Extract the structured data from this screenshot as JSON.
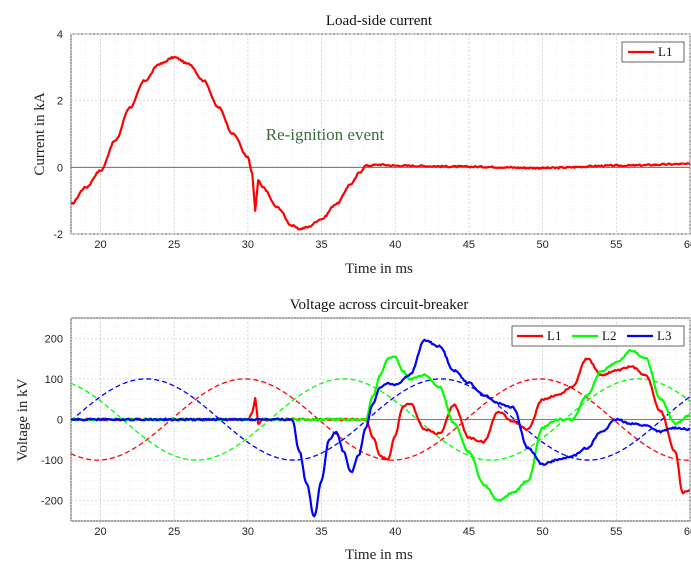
{
  "chart_data": [
    {
      "type": "line",
      "title": "Load-side current",
      "xlabel": "Time in ms",
      "ylabel": "Current in kA",
      "xlim": [
        18,
        60
      ],
      "ylim": [
        -2,
        4
      ],
      "xticks": [
        20,
        25,
        30,
        35,
        40,
        45,
        50,
        55,
        60
      ],
      "yticks": [
        -2,
        0,
        2,
        4
      ],
      "grid": true,
      "legend_position": "top-right",
      "annotation": {
        "text": "Re-ignition event",
        "x": 34,
        "y": 1.05,
        "color": "#3e6b3e"
      },
      "series": [
        {
          "name": "L1",
          "color": "#ff0000",
          "style": "solid",
          "x": [
            18,
            19,
            20,
            21,
            22,
            23,
            24,
            25,
            26,
            27,
            28,
            29,
            30,
            30.3,
            30.5,
            30.7,
            31,
            32,
            33,
            33.5,
            34,
            35,
            36,
            37,
            37.6,
            38,
            39,
            40,
            45,
            50,
            55,
            60
          ],
          "y": [
            -1.1,
            -0.6,
            -0.1,
            0.8,
            1.8,
            2.6,
            3.1,
            3.3,
            3.1,
            2.6,
            1.8,
            1.0,
            0.3,
            -0.2,
            -1.3,
            -0.4,
            -0.6,
            -1.2,
            -1.75,
            -1.85,
            -1.8,
            -1.55,
            -1.1,
            -0.5,
            -0.15,
            0.05,
            0.08,
            0.05,
            0.02,
            -0.02,
            0.05,
            0.1
          ]
        }
      ]
    },
    {
      "type": "line",
      "title": "Voltage across circuit-breaker",
      "xlabel": "Time in ms",
      "ylabel": "Voltage in kV",
      "xlim": [
        18,
        60
      ],
      "ylim": [
        -250,
        250
      ],
      "xticks": [
        20,
        25,
        30,
        35,
        40,
        45,
        50,
        55,
        60
      ],
      "yticks": [
        -200,
        -100,
        0,
        100,
        200
      ],
      "grid": true,
      "legend_position": "top-right",
      "series": [
        {
          "name": "L1",
          "color": "#ff0000",
          "style": "solid",
          "x": [
            18,
            30,
            30.3,
            30.5,
            30.7,
            31,
            33,
            38,
            38.5,
            39,
            39.5,
            40,
            40.5,
            41,
            42,
            43,
            44,
            45,
            46,
            47,
            48,
            49,
            50,
            51,
            52,
            53,
            54,
            55,
            56,
            57,
            58,
            59,
            59.5,
            60
          ],
          "y": [
            0,
            0,
            15,
            55,
            -10,
            0,
            0,
            0,
            -45,
            -90,
            -100,
            -40,
            30,
            40,
            -25,
            -35,
            35,
            -45,
            -55,
            20,
            -5,
            -25,
            50,
            60,
            80,
            150,
            110,
            120,
            130,
            110,
            20,
            -80,
            -180,
            -175
          ]
        },
        {
          "name": "L2",
          "color": "#00ff00",
          "style": "solid",
          "x": [
            18,
            38,
            38.5,
            39,
            39.5,
            40,
            40.5,
            41,
            42,
            43,
            44,
            45,
            46,
            47,
            48,
            49,
            50,
            51,
            52,
            53,
            54,
            55,
            56,
            57,
            58,
            59,
            60
          ],
          "y": [
            0,
            0,
            60,
            110,
            150,
            155,
            120,
            100,
            110,
            80,
            -10,
            -80,
            -160,
            -200,
            -180,
            -150,
            -20,
            0,
            0,
            60,
            120,
            140,
            170,
            150,
            50,
            -10,
            10
          ]
        },
        {
          "name": "L3",
          "color": "#0000ff",
          "style": "solid",
          "x": [
            18,
            33,
            33.5,
            34,
            34.5,
            35,
            35.5,
            36,
            36.5,
            37,
            37.5,
            38,
            38.5,
            39,
            39.5,
            40,
            41,
            42,
            43,
            44,
            45,
            46,
            47,
            48,
            49,
            50,
            51,
            52,
            53,
            54,
            55,
            56,
            57,
            58,
            59,
            60
          ],
          "y": [
            0,
            0,
            -80,
            -160,
            -240,
            -150,
            -50,
            -30,
            -80,
            -130,
            -90,
            -20,
            40,
            80,
            90,
            85,
            110,
            195,
            180,
            120,
            90,
            60,
            40,
            30,
            -70,
            -110,
            -100,
            -90,
            -70,
            -30,
            0,
            -10,
            -15,
            -30,
            -20,
            -25
          ]
        },
        {
          "name": "",
          "color": "#ff0000",
          "style": "dashed",
          "sine": {
            "amplitude": 100,
            "period_ms": 20,
            "peak_at_ms": 29.8
          }
        },
        {
          "name": "",
          "color": "#00ff00",
          "style": "dashed",
          "sine": {
            "amplitude": 100,
            "period_ms": 20,
            "peak_at_ms": 36.5
          }
        },
        {
          "name": "",
          "color": "#0000ff",
          "style": "dashed",
          "sine": {
            "amplitude": 100,
            "period_ms": 20,
            "peak_at_ms": 23.1
          }
        }
      ]
    }
  ]
}
